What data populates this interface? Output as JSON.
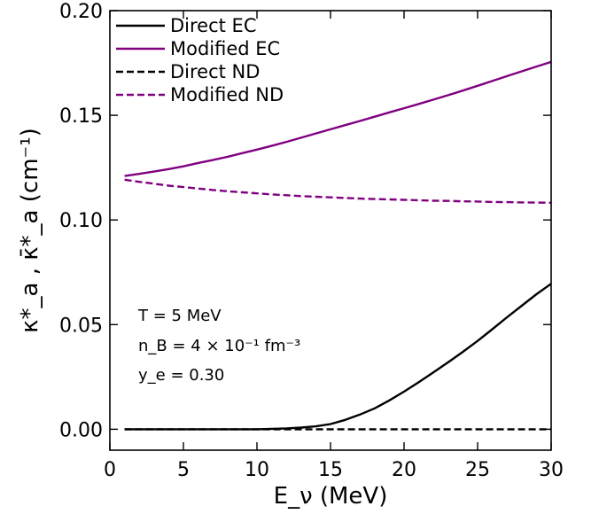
{
  "chart_data": {
    "type": "line",
    "xlabel": "E_ν (MeV)",
    "ylabel": "κ*_a , κ̄*_a  (cm⁻¹)",
    "xlim": [
      0,
      30
    ],
    "ylim": [
      -0.01,
      0.2
    ],
    "xticks": [
      0,
      5,
      10,
      15,
      20,
      25,
      30
    ],
    "xtick_labels": [
      "0",
      "5",
      "10",
      "15",
      "20",
      "25",
      "30"
    ],
    "yticks": [
      0.0,
      0.05,
      0.1,
      0.15,
      0.2
    ],
    "ytick_labels": [
      "0.00",
      "0.05",
      "0.10",
      "0.15",
      "0.20"
    ],
    "grid": false,
    "legend_position": "top-left",
    "annotations": [
      "T = 5 MeV",
      "n_B = 4 × 10⁻¹ fm⁻³",
      "y_e = 0.30"
    ],
    "x": [
      1,
      2,
      3,
      4,
      5,
      6,
      7,
      8,
      9,
      10,
      11,
      12,
      13,
      14,
      15,
      16,
      17,
      18,
      19,
      20,
      21,
      22,
      23,
      24,
      25,
      26,
      27,
      28,
      29,
      30
    ],
    "series": [
      {
        "name": "Direct EC",
        "color": "#000000",
        "dash": "solid",
        "values": [
          0.0,
          0.0,
          0.0,
          0.0,
          0.0,
          0.0,
          0.0,
          0.0,
          0.0,
          0.0,
          0.0002,
          0.0004,
          0.0008,
          0.0014,
          0.0025,
          0.0045,
          0.007,
          0.01,
          0.0138,
          0.018,
          0.0225,
          0.0272,
          0.032,
          0.037,
          0.0422,
          0.0478,
          0.0535,
          0.059,
          0.0645,
          0.0695
        ]
      },
      {
        "name": "Modified EC",
        "color": "#800080",
        "dash": "solid",
        "values": [
          0.121,
          0.122,
          0.1231,
          0.1243,
          0.1256,
          0.1272,
          0.1286,
          0.1302,
          0.1319,
          0.1336,
          0.1354,
          0.1373,
          0.1393,
          0.1413,
          0.1433,
          0.1453,
          0.1473,
          0.1493,
          0.1514,
          0.1534,
          0.1554,
          0.1575,
          0.1596,
          0.1618,
          0.1641,
          0.1664,
          0.1687,
          0.171,
          0.1733,
          0.1755
        ]
      },
      {
        "name": "Direct ND",
        "color": "#000000",
        "dash": "dashed",
        "values": [
          0.0,
          0.0,
          0.0,
          0.0,
          0.0,
          0.0,
          0.0,
          0.0,
          0.0,
          0.0,
          0.0,
          0.0,
          0.0,
          0.0,
          0.0,
          0.0,
          0.0,
          0.0,
          0.0,
          0.0,
          0.0,
          0.0,
          0.0,
          0.0,
          0.0,
          0.0,
          0.0,
          0.0,
          0.0,
          0.0
        ]
      },
      {
        "name": "Modified ND",
        "color": "#800080",
        "dash": "dashed",
        "values": [
          0.1192,
          0.1182,
          0.1173,
          0.1164,
          0.1157,
          0.115,
          0.1143,
          0.1137,
          0.1132,
          0.1127,
          0.1122,
          0.1118,
          0.1114,
          0.1111,
          0.1108,
          0.1105,
          0.1102,
          0.11,
          0.1098,
          0.1096,
          0.1094,
          0.1092,
          0.1091,
          0.1089,
          0.1088,
          0.1086,
          0.1085,
          0.1084,
          0.1083,
          0.1082
        ]
      }
    ]
  }
}
